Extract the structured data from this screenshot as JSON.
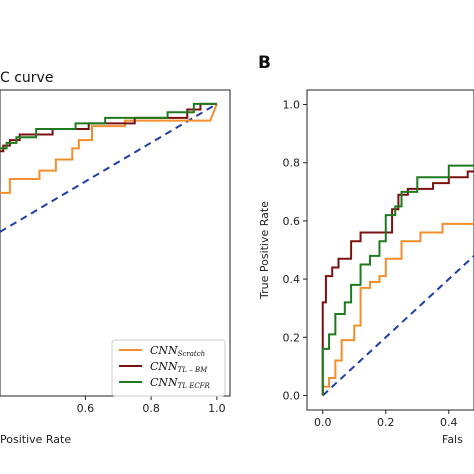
{
  "chart_data": [
    {
      "panel": "",
      "type": "line",
      "title": "C curve",
      "xlabel": "Positive Rate",
      "ylabel": "",
      "xlim": [
        0.34,
        1.04
      ],
      "ylim": [
        -0.05,
        1.05
      ],
      "xticks": [
        "0.6",
        "0.8",
        "1.0"
      ],
      "xtick_values": [
        0.6,
        0.8,
        1.0
      ],
      "legend_position": "lower-right",
      "series": [
        {
          "name": "CNN_Scratch",
          "name_main": "CNN",
          "name_sub": "Scratch",
          "color": "#f28e2b",
          "points": [
            [
              0.34,
              0.68
            ],
            [
              0.37,
              0.68
            ],
            [
              0.37,
              0.73
            ],
            [
              0.46,
              0.73
            ],
            [
              0.46,
              0.76
            ],
            [
              0.51,
              0.76
            ],
            [
              0.51,
              0.8
            ],
            [
              0.56,
              0.8
            ],
            [
              0.56,
              0.84
            ],
            [
              0.58,
              0.84
            ],
            [
              0.58,
              0.87
            ],
            [
              0.62,
              0.87
            ],
            [
              0.62,
              0.92
            ],
            [
              0.72,
              0.92
            ],
            [
              0.72,
              0.94
            ],
            [
              0.98,
              0.94
            ],
            [
              1.0,
              1.0
            ]
          ]
        },
        {
          "name": "CNN_TL-BM",
          "name_main": "CNN",
          "name_sub": "TL – BM",
          "color": "#7b1010",
          "points": [
            [
              0.34,
              0.83
            ],
            [
              0.35,
              0.83
            ],
            [
              0.35,
              0.85
            ],
            [
              0.37,
              0.85
            ],
            [
              0.37,
              0.87
            ],
            [
              0.4,
              0.87
            ],
            [
              0.4,
              0.89
            ],
            [
              0.5,
              0.89
            ],
            [
              0.5,
              0.91
            ],
            [
              0.61,
              0.91
            ],
            [
              0.61,
              0.93
            ],
            [
              0.75,
              0.93
            ],
            [
              0.75,
              0.95
            ],
            [
              0.91,
              0.95
            ],
            [
              0.91,
              0.98
            ],
            [
              0.95,
              0.98
            ],
            [
              0.95,
              1.0
            ],
            [
              1.0,
              1.0
            ]
          ]
        },
        {
          "name": "CNN_TL-ECFR",
          "name_main": "CNN",
          "name_sub": "TL   ECFR",
          "color": "#1f7a1f",
          "points": [
            [
              0.34,
              0.84
            ],
            [
              0.36,
              0.84
            ],
            [
              0.36,
              0.86
            ],
            [
              0.39,
              0.86
            ],
            [
              0.39,
              0.88
            ],
            [
              0.45,
              0.88
            ],
            [
              0.45,
              0.91
            ],
            [
              0.57,
              0.91
            ],
            [
              0.57,
              0.93
            ],
            [
              0.66,
              0.93
            ],
            [
              0.66,
              0.95
            ],
            [
              0.85,
              0.95
            ],
            [
              0.85,
              0.97
            ],
            [
              0.93,
              0.97
            ],
            [
              0.93,
              1.0
            ],
            [
              1.0,
              1.0
            ]
          ]
        }
      ],
      "reference_line": {
        "points": [
          [
            0.34,
            0.54
          ],
          [
            1.0,
            1.0
          ]
        ],
        "color": "#1f3ea8",
        "style": "dashed"
      }
    },
    {
      "panel": "B",
      "type": "line",
      "title": "",
      "xlabel": "Fals",
      "ylabel": "True Positive Rate",
      "xlim": [
        -0.05,
        0.48
      ],
      "ylim": [
        -0.05,
        1.05
      ],
      "xticks": [
        "0.0",
        "0.2",
        "0.4"
      ],
      "xtick_values": [
        0.0,
        0.2,
        0.4
      ],
      "yticks": [
        "0.0",
        "0.2",
        "0.4",
        "0.6",
        "0.8",
        "1.0"
      ],
      "ytick_values": [
        0.0,
        0.2,
        0.4,
        0.6,
        0.8,
        1.0
      ],
      "series": [
        {
          "name": "CNN_Scratch",
          "color": "#f28e2b",
          "points": [
            [
              0.0,
              0.0
            ],
            [
              0.0,
              0.03
            ],
            [
              0.02,
              0.03
            ],
            [
              0.02,
              0.06
            ],
            [
              0.04,
              0.06
            ],
            [
              0.04,
              0.12
            ],
            [
              0.06,
              0.12
            ],
            [
              0.06,
              0.19
            ],
            [
              0.1,
              0.19
            ],
            [
              0.1,
              0.24
            ],
            [
              0.12,
              0.24
            ],
            [
              0.12,
              0.37
            ],
            [
              0.15,
              0.37
            ],
            [
              0.15,
              0.39
            ],
            [
              0.18,
              0.39
            ],
            [
              0.18,
              0.41
            ],
            [
              0.2,
              0.41
            ],
            [
              0.2,
              0.47
            ],
            [
              0.25,
              0.47
            ],
            [
              0.25,
              0.53
            ],
            [
              0.31,
              0.53
            ],
            [
              0.31,
              0.56
            ],
            [
              0.38,
              0.56
            ],
            [
              0.38,
              0.59
            ],
            [
              0.48,
              0.59
            ]
          ]
        },
        {
          "name": "CNN_TL-BM",
          "color": "#7b1010",
          "points": [
            [
              0.0,
              0.0
            ],
            [
              0.0,
              0.32
            ],
            [
              0.01,
              0.32
            ],
            [
              0.01,
              0.41
            ],
            [
              0.03,
              0.41
            ],
            [
              0.03,
              0.44
            ],
            [
              0.05,
              0.44
            ],
            [
              0.05,
              0.47
            ],
            [
              0.09,
              0.47
            ],
            [
              0.09,
              0.53
            ],
            [
              0.12,
              0.53
            ],
            [
              0.12,
              0.56
            ],
            [
              0.22,
              0.56
            ],
            [
              0.22,
              0.64
            ],
            [
              0.24,
              0.64
            ],
            [
              0.24,
              0.69
            ],
            [
              0.27,
              0.69
            ],
            [
              0.27,
              0.71
            ],
            [
              0.35,
              0.71
            ],
            [
              0.35,
              0.73
            ],
            [
              0.4,
              0.73
            ],
            [
              0.4,
              0.75
            ],
            [
              0.46,
              0.75
            ],
            [
              0.46,
              0.77
            ],
            [
              0.48,
              0.77
            ]
          ]
        },
        {
          "name": "CNN_TL-ECFR",
          "color": "#1f7a1f",
          "points": [
            [
              0.0,
              0.0
            ],
            [
              0.0,
              0.16
            ],
            [
              0.02,
              0.16
            ],
            [
              0.02,
              0.21
            ],
            [
              0.04,
              0.21
            ],
            [
              0.04,
              0.28
            ],
            [
              0.07,
              0.28
            ],
            [
              0.07,
              0.32
            ],
            [
              0.09,
              0.32
            ],
            [
              0.09,
              0.38
            ],
            [
              0.12,
              0.38
            ],
            [
              0.12,
              0.45
            ],
            [
              0.15,
              0.45
            ],
            [
              0.15,
              0.48
            ],
            [
              0.18,
              0.48
            ],
            [
              0.18,
              0.53
            ],
            [
              0.2,
              0.53
            ],
            [
              0.2,
              0.62
            ],
            [
              0.23,
              0.62
            ],
            [
              0.23,
              0.65
            ],
            [
              0.25,
              0.65
            ],
            [
              0.25,
              0.7
            ],
            [
              0.3,
              0.7
            ],
            [
              0.3,
              0.75
            ],
            [
              0.4,
              0.75
            ],
            [
              0.4,
              0.79
            ],
            [
              0.48,
              0.79
            ]
          ]
        }
      ],
      "reference_line": {
        "points": [
          [
            0.0,
            0.0
          ],
          [
            0.48,
            0.48
          ]
        ],
        "color": "#1f3ea8",
        "style": "dashed"
      }
    }
  ]
}
